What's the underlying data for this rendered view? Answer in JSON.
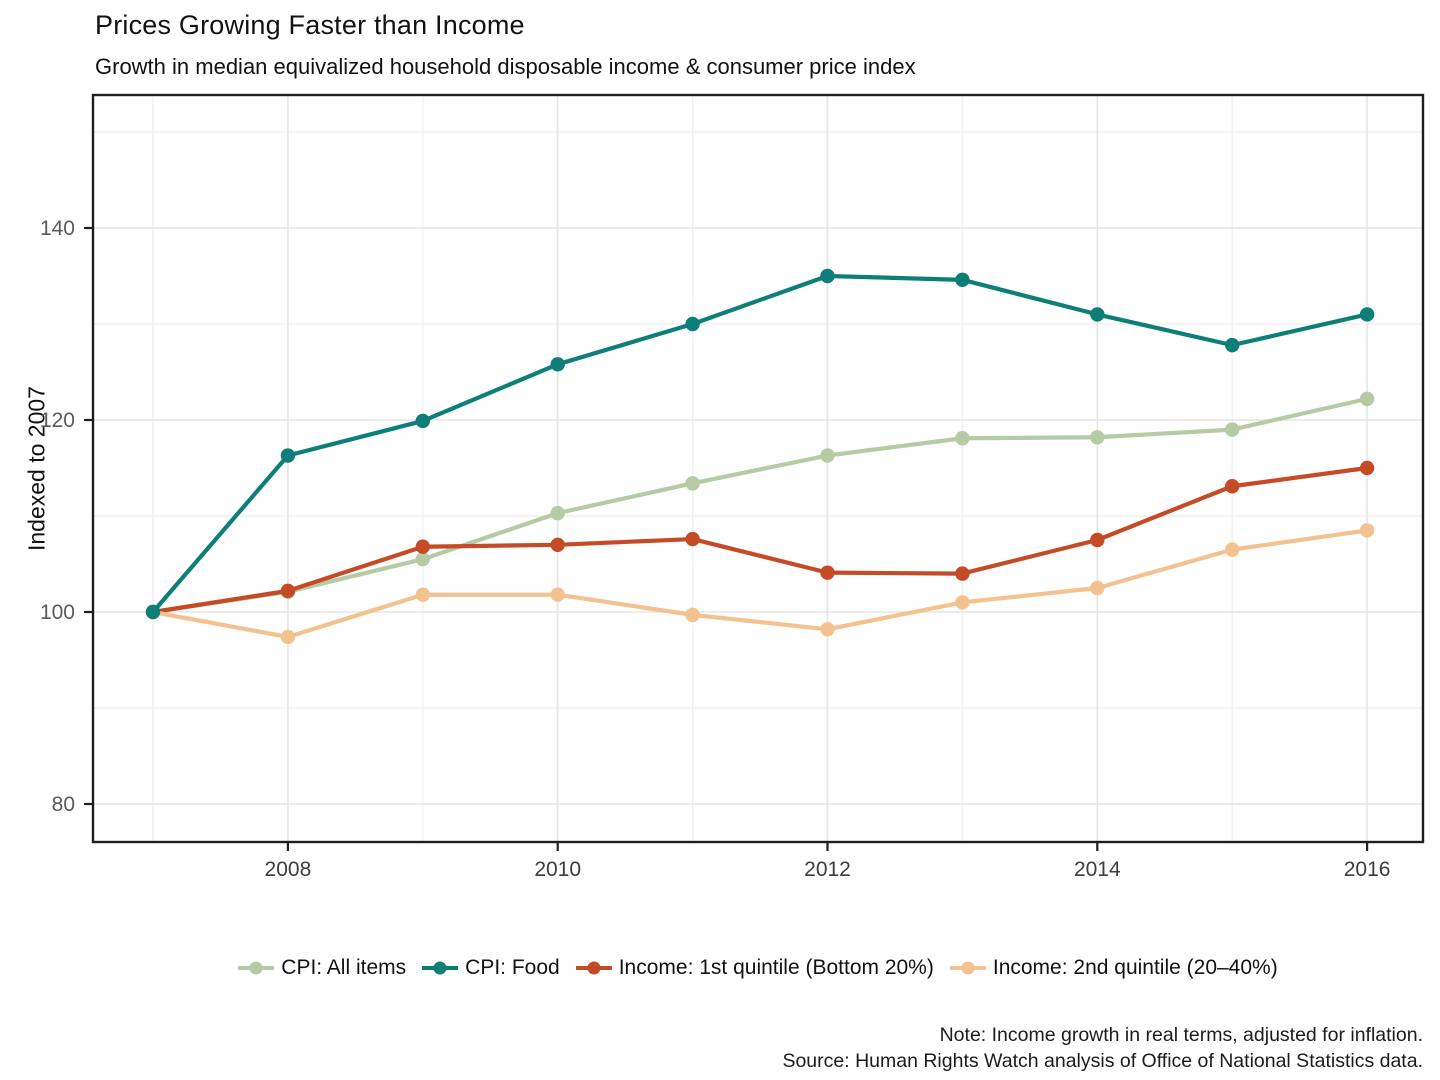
{
  "title": "Prices Growing Faster than Income",
  "subtitle": "Growth in median equivalized household disposable income & consumer price index",
  "y_axis_title": "Indexed to 2007",
  "caption": {
    "note": "Note: Income growth in real terms, adjusted for inflation.",
    "source": "Source: Human Rights Watch analysis of Office of National Statistics data."
  },
  "chart_data": {
    "type": "line",
    "title": "Prices Growing Faster than Income",
    "subtitle": "Growth in median equivalized household disposable income & consumer price index",
    "xlabel": "",
    "ylabel": "Indexed to 2007",
    "x": [
      2007,
      2008,
      2009,
      2010,
      2011,
      2012,
      2013,
      2014,
      2015,
      2016
    ],
    "series": [
      {
        "name": "CPI: All items",
        "color": "#b4cba3",
        "values": [
          100,
          102.1,
          105.5,
          110.3,
          113.4,
          116.3,
          118.1,
          118.2,
          119.0,
          122.2
        ]
      },
      {
        "name": "CPI: Food",
        "color": "#0e7f78",
        "values": [
          100,
          116.3,
          119.9,
          125.8,
          130.0,
          135.0,
          134.6,
          131.0,
          127.8,
          131.0
        ]
      },
      {
        "name": "Income: 1st quintile (Bottom 20%)",
        "color": "#c54b27",
        "values": [
          100,
          102.2,
          106.8,
          107.0,
          107.6,
          104.1,
          104.0,
          107.5,
          113.1,
          115.0
        ]
      },
      {
        "name": "Income: 2nd quintile (20–40%)",
        "color": "#f3c28f",
        "values": [
          100,
          97.4,
          101.8,
          101.8,
          99.7,
          98.2,
          101.0,
          102.5,
          106.5,
          108.5
        ]
      }
    ],
    "x_major_ticks": [
      2008,
      2010,
      2012,
      2014,
      2016
    ],
    "x_minor_gridlines": [
      2007,
      2009,
      2011,
      2013,
      2015
    ],
    "y_major_ticks": [
      80,
      100,
      120,
      140
    ],
    "y_minor_gridlines": [
      90,
      110,
      130,
      150
    ],
    "xlim": [
      2006.56,
      2016.41
    ],
    "ylim": [
      76,
      154
    ],
    "grid": true,
    "legend_position": "bottom"
  }
}
